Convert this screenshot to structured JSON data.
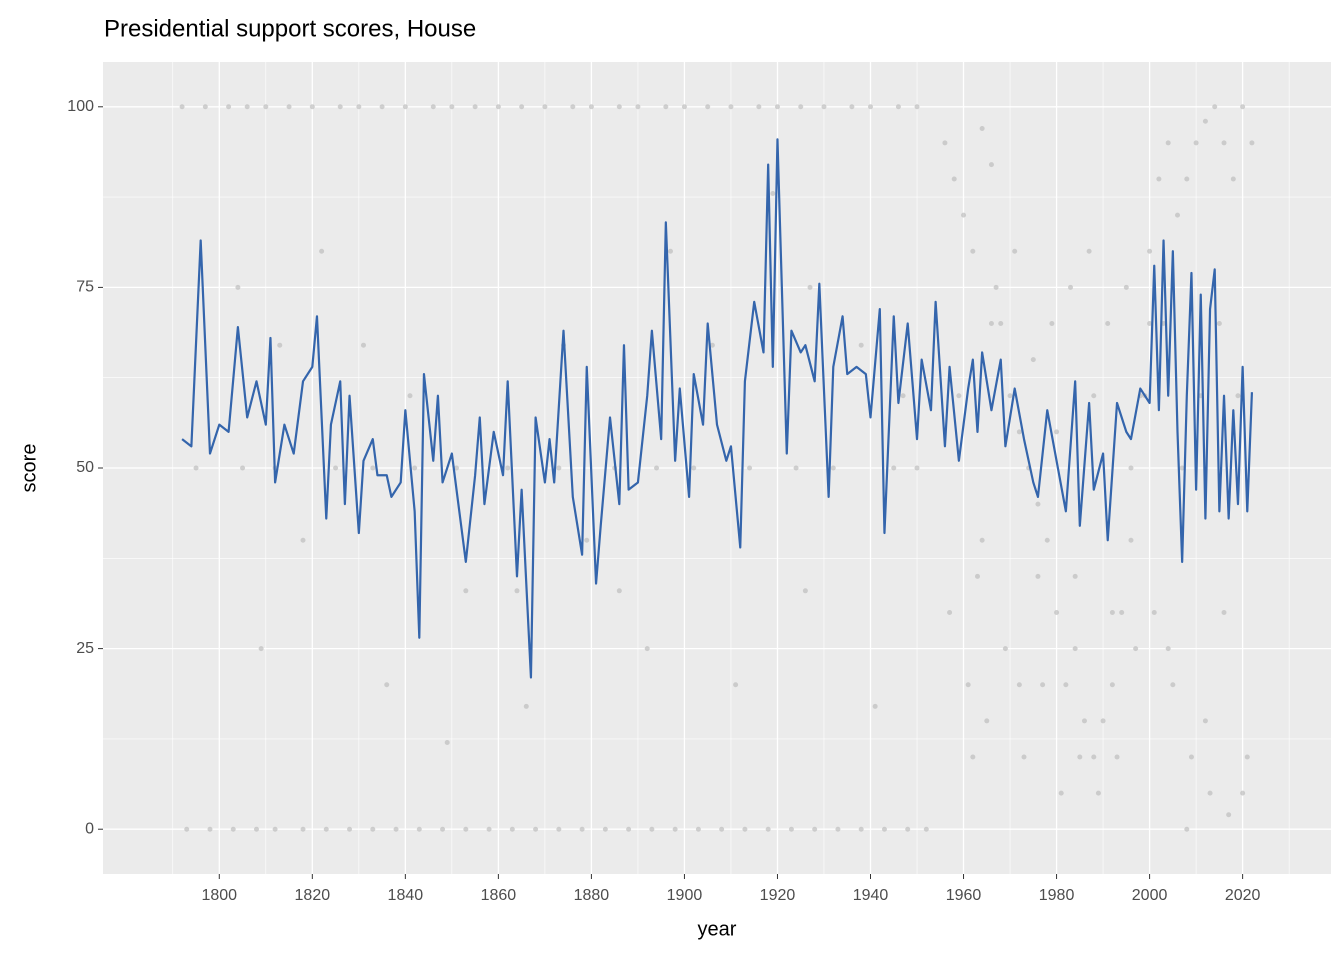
{
  "chart_data": {
    "type": "line",
    "title": "Presidential support scores, House",
    "xlabel": "year",
    "ylabel": "score",
    "xlim": [
      1775,
      2039
    ],
    "ylim": [
      -6.2,
      106.2
    ],
    "xticks": [
      1800,
      1820,
      1840,
      1860,
      1880,
      1900,
      1920,
      1940,
      1960,
      1980,
      2000,
      2020
    ],
    "yticks": [
      0,
      25,
      50,
      75,
      100
    ],
    "grid": true,
    "scatter": {
      "color": "#bebebe",
      "x": [
        1792,
        1797,
        1802,
        1806,
        1810,
        1815,
        1820,
        1826,
        1830,
        1835,
        1840,
        1846,
        1850,
        1855,
        1860,
        1865,
        1870,
        1876,
        1880,
        1886,
        1890,
        1896,
        1900,
        1905,
        1910,
        1916,
        1920,
        1925,
        1930,
        1936,
        1940,
        1946,
        1950,
        1793,
        1798,
        1803,
        1808,
        1812,
        1818,
        1823,
        1828,
        1833,
        1838,
        1843,
        1848,
        1853,
        1858,
        1863,
        1868,
        1873,
        1878,
        1883,
        1888,
        1893,
        1898,
        1903,
        1908,
        1913,
        1918,
        1923,
        1928,
        1933,
        1938,
        1943,
        1948,
        1952,
        1795,
        1805,
        1812,
        1825,
        1833,
        1842,
        1851,
        1862,
        1873,
        1885,
        1894,
        1902,
        1914,
        1924,
        1932,
        1945,
        1950,
        1804,
        1813,
        1822,
        1831,
        1841,
        1853,
        1864,
        1874,
        1886,
        1897,
        1906,
        1919,
        1927,
        1938,
        1947,
        1809,
        1818,
        1836,
        1849,
        1866,
        1879,
        1892,
        1911,
        1926,
        1941,
        1956,
        1958,
        1960,
        1962,
        1964,
        1966,
        1968,
        1970,
        1972,
        1974,
        1976,
        1978,
        1980,
        1982,
        1984,
        1986,
        1988,
        1990,
        1992,
        1994,
        1996,
        1998,
        2000,
        2002,
        2004,
        2006,
        2008,
        2010,
        2012,
        2014,
        2016,
        2018,
        2020,
        2022,
        1957,
        1961,
        1963,
        1965,
        1969,
        1973,
        1977,
        1981,
        1985,
        1989,
        1993,
        1997,
        2001,
        2005,
        2009,
        2013,
        2017,
        2021,
        1959,
        1964,
        1967,
        1971,
        1975,
        1979,
        1983,
        1987,
        1991,
        1995,
        1999,
        2003,
        2007,
        2011,
        2015,
        2019,
        1962,
        1966,
        1972,
        1976,
        1980,
        1984,
        1988,
        1992,
        1996,
        2000,
        2004,
        2008,
        2012,
        2016,
        2020
      ],
      "y": [
        100,
        100,
        100,
        100,
        100,
        100,
        100,
        100,
        100,
        100,
        100,
        100,
        100,
        100,
        100,
        100,
        100,
        100,
        100,
        100,
        100,
        100,
        100,
        100,
        100,
        100,
        100,
        100,
        100,
        100,
        100,
        100,
        100,
        0,
        0,
        0,
        0,
        0,
        0,
        0,
        0,
        0,
        0,
        0,
        0,
        0,
        0,
        0,
        0,
        0,
        0,
        0,
        0,
        0,
        0,
        0,
        0,
        0,
        0,
        0,
        0,
        0,
        0,
        0,
        0,
        0,
        50,
        50,
        50,
        50,
        50,
        50,
        50,
        50,
        50,
        50,
        50,
        50,
        50,
        50,
        50,
        50,
        50,
        75,
        67,
        80,
        67,
        60,
        33,
        33,
        67,
        33,
        80,
        67,
        88,
        75,
        67,
        60,
        25,
        40,
        20,
        12,
        17,
        40,
        25,
        20,
        33,
        17,
        95,
        90,
        85,
        80,
        97,
        92,
        70,
        60,
        55,
        50,
        45,
        40,
        30,
        20,
        25,
        15,
        10,
        15,
        20,
        30,
        40,
        60,
        80,
        90,
        95,
        85,
        90,
        95,
        98,
        100,
        95,
        90,
        100,
        95,
        30,
        20,
        35,
        15,
        25,
        10,
        20,
        5,
        10,
        5,
        10,
        25,
        30,
        20,
        10,
        5,
        2,
        10,
        60,
        40,
        75,
        80,
        65,
        70,
        75,
        80,
        70,
        75,
        60,
        70,
        50,
        60,
        70,
        60,
        10,
        70,
        20,
        35,
        55,
        35,
        60,
        30,
        50,
        70,
        25,
        0,
        15,
        30,
        5
      ]
    },
    "line": {
      "color": "#3465ac",
      "x": [
        1792,
        1794,
        1796,
        1798,
        1800,
        1802,
        1804,
        1806,
        1808,
        1810,
        1811,
        1812,
        1814,
        1816,
        1818,
        1820,
        1821,
        1823,
        1824,
        1826,
        1827,
        1828,
        1830,
        1831,
        1833,
        1834,
        1836,
        1837,
        1839,
        1840,
        1842,
        1843,
        1844,
        1846,
        1847,
        1848,
        1850,
        1852,
        1853,
        1855,
        1856,
        1857,
        1859,
        1861,
        1862,
        1864,
        1865,
        1867,
        1868,
        1870,
        1871,
        1872,
        1874,
        1876,
        1878,
        1879,
        1881,
        1882,
        1884,
        1886,
        1887,
        1888,
        1890,
        1892,
        1893,
        1895,
        1896,
        1898,
        1899,
        1901,
        1902,
        1904,
        1905,
        1907,
        1909,
        1910,
        1912,
        1913,
        1915,
        1917,
        1918,
        1919,
        1920,
        1922,
        1923,
        1925,
        1926,
        1928,
        1929,
        1931,
        1932,
        1934,
        1935,
        1937,
        1939,
        1940,
        1942,
        1943,
        1945,
        1946,
        1948,
        1950,
        1951,
        1953,
        1954,
        1956,
        1957,
        1959,
        1961,
        1962,
        1963,
        1964,
        1966,
        1968,
        1969,
        1971,
        1973,
        1975,
        1976,
        1978,
        1980,
        1982,
        1984,
        1985,
        1987,
        1988,
        1990,
        1991,
        1993,
        1995,
        1996,
        1998,
        2000,
        2001,
        2002,
        2003,
        2004,
        2005,
        2006,
        2007,
        2008,
        2009,
        2010,
        2011,
        2012,
        2013,
        2014,
        2015,
        2016,
        2017,
        2018,
        2019,
        2020,
        2021,
        2022
      ],
      "values": [
        54,
        53,
        81.5,
        52,
        56,
        55,
        69.5,
        57,
        62,
        56,
        68,
        48,
        56,
        52,
        62,
        64,
        71,
        43,
        56,
        62,
        45,
        60,
        41,
        51,
        54,
        49,
        49,
        46,
        48,
        58,
        44,
        26.5,
        63,
        51,
        60,
        48,
        52,
        42,
        37,
        49,
        57,
        45,
        55,
        49,
        62,
        35,
        47,
        21,
        57,
        48,
        54,
        48,
        69,
        46,
        38,
        64,
        34,
        42,
        57,
        45,
        67,
        47,
        48,
        60,
        69,
        54,
        84,
        51,
        61,
        46,
        63,
        56,
        70,
        56,
        51,
        53,
        39,
        62,
        73,
        66,
        92,
        64,
        95.5,
        52,
        69,
        66,
        67,
        62,
        75.5,
        46,
        64,
        71,
        63,
        64,
        63,
        57,
        72,
        41,
        71,
        59,
        70,
        54,
        65,
        58,
        73,
        53,
        64,
        51,
        61,
        65,
        55,
        66,
        58,
        65,
        53,
        61,
        54,
        48,
        46,
        58,
        51,
        44,
        62,
        42,
        59,
        47,
        52,
        40,
        59,
        55,
        54,
        61,
        59,
        78,
        58,
        81.5,
        60,
        80,
        55,
        37,
        60,
        77,
        47,
        74,
        43,
        72,
        77.5,
        44,
        60,
        43,
        58,
        45,
        64,
        44,
        60.5
      ]
    }
  }
}
